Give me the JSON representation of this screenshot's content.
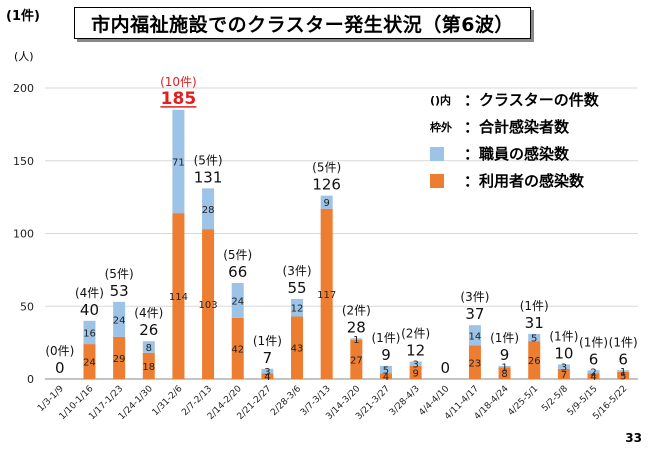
{
  "page_note": "(1件)",
  "title": "市内福祉施設でのクラスター発生状況（第6波）",
  "page_number": "33",
  "legend": {
    "clusters_key": "()内",
    "clusters_text": "：クラスターの件数",
    "total_key": "枠外",
    "total_text": "：合計感染者数",
    "staff_text": "：職員の感染数",
    "users_text": "：利用者の感染数"
  },
  "colors": {
    "staff": "#9DC3E6",
    "users": "#ED7D31",
    "highlight": "#E02020"
  },
  "chart_data": {
    "type": "bar",
    "stacked": true,
    "ylabel": "(人)",
    "ylim": [
      0,
      200
    ],
    "yticks": [
      0,
      50,
      100,
      150,
      200
    ],
    "categories": [
      "1/3-1/9",
      "1/10-1/16",
      "1/17-1/23",
      "1/24-1/30",
      "1/31-2/6",
      "2/7-2/13",
      "2/14-2/20",
      "2/21-2/27",
      "2/28-3/6",
      "3/7-3/13",
      "3/14-3/20",
      "3/21-3/27",
      "3/28-4/3",
      "4/4-4/10",
      "4/11-4/17",
      "4/18-4/24",
      "4/25-5/1",
      "5/2-5/8",
      "5/9-5/15",
      "5/16-5/22"
    ],
    "series": [
      {
        "name": "利用者の感染数",
        "values": [
          0,
          24,
          29,
          18,
          114,
          103,
          42,
          4,
          43,
          117,
          27,
          4,
          9,
          0,
          23,
          8,
          26,
          7,
          4,
          5
        ]
      },
      {
        "name": "職員の感染数",
        "values": [
          0,
          16,
          24,
          8,
          71,
          28,
          24,
          3,
          12,
          9,
          1,
          5,
          3,
          0,
          14,
          1,
          5,
          3,
          2,
          1
        ]
      }
    ],
    "totals": [
      0,
      40,
      53,
      26,
      185,
      131,
      66,
      7,
      55,
      126,
      28,
      9,
      12,
      0,
      37,
      9,
      31,
      10,
      6,
      6
    ],
    "cluster_labels": [
      "(0件)",
      "(4件)",
      "(5件)",
      "(4件)",
      "(10件)",
      "(5件)",
      "(5件)",
      "(1件)",
      "(3件)",
      "(5件)",
      "(2件)",
      "(1件)",
      "(2件)",
      "",
      "(3件)",
      "(1件)",
      "(1件)",
      "(1件)",
      "(1件)",
      "(1件)"
    ],
    "highlight_index": 4
  }
}
